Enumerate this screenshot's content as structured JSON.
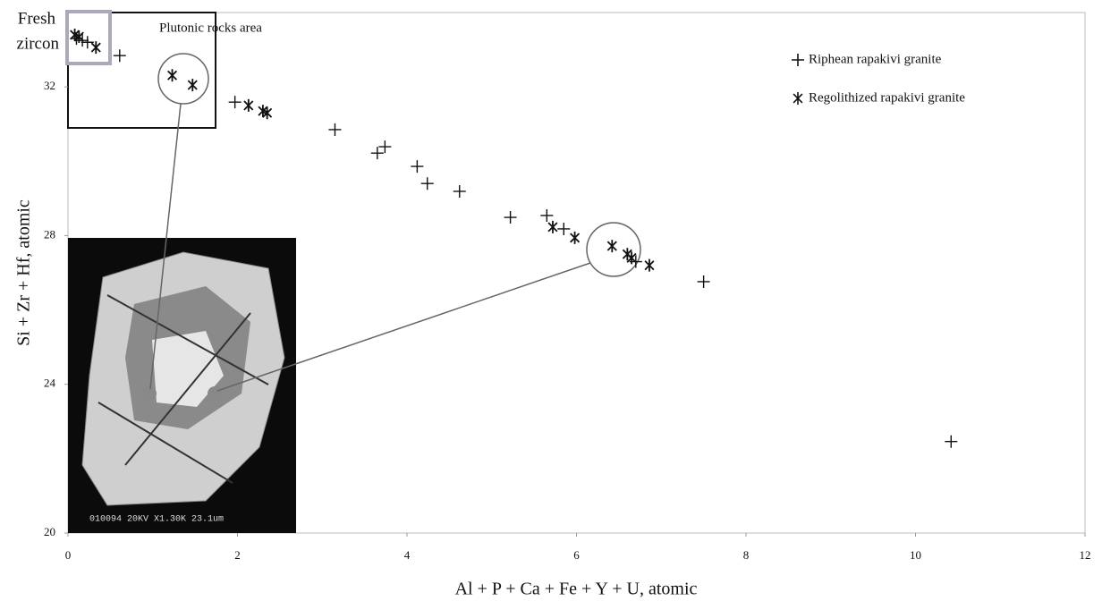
{
  "chart_data": {
    "type": "scatter",
    "x_label": "Al + P + Ca + Fe + Y + U, atomic",
    "y_label": "Si + Zr + Hf, atomic",
    "xlim": [
      0,
      12
    ],
    "xticks": [
      0,
      2,
      4,
      6,
      8,
      10,
      12
    ],
    "ylim": [
      20,
      34
    ],
    "yticks": [
      20,
      24,
      28,
      32
    ],
    "legend": "top-right",
    "annotations": [
      "Fresh",
      "zircon",
      "Plutonic rocks area",
      "010094 20KV  X1.30K 23.1um"
    ],
    "series": [
      {
        "name": "Riphean rapakivi granite",
        "marker": "plus",
        "color": "#111111",
        "x": [
          0.1,
          0.17,
          0.23,
          0.61,
          1.97,
          3.15,
          3.65,
          3.74,
          4.12,
          4.24,
          4.62,
          5.22,
          5.65,
          5.85,
          6.7,
          7.5,
          10.42
        ],
        "values": [
          33.3,
          33.25,
          33.2,
          32.84,
          31.59,
          30.85,
          30.22,
          30.39,
          29.86,
          29.4,
          29.19,
          28.49,
          28.54,
          28.18,
          27.3,
          26.76,
          22.46
        ]
      },
      {
        "name": "Regolithized rapakivi granite",
        "marker": "asterisk",
        "color": "#111111",
        "x": [
          0.08,
          0.13,
          0.33,
          1.23,
          1.47,
          2.13,
          2.3,
          2.35,
          5.72,
          5.98,
          6.42,
          6.6,
          6.65,
          6.86
        ],
        "values": [
          33.4,
          33.35,
          33.06,
          32.31,
          32.05,
          31.5,
          31.35,
          31.3,
          28.23,
          27.94,
          27.72,
          27.5,
          27.4,
          27.2
        ]
      }
    ]
  }
}
